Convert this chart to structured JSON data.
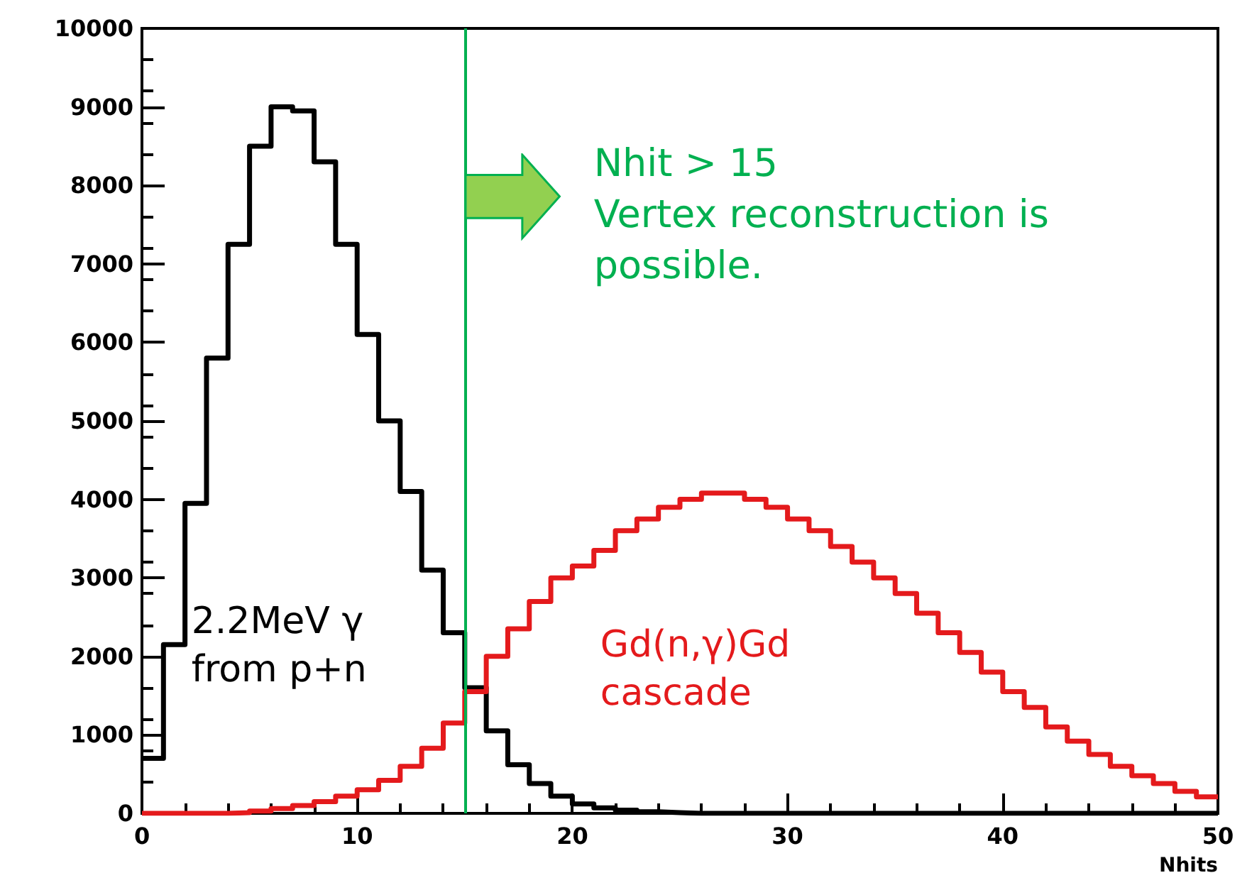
{
  "chart_data": {
    "type": "histogram",
    "xlabel": "Nhits",
    "bins": [
      0,
      1,
      2,
      3,
      4,
      5,
      6,
      7,
      8,
      9,
      10,
      11,
      12,
      13,
      14,
      15,
      16,
      17,
      18,
      19,
      20,
      21,
      22,
      23,
      24,
      25,
      26,
      27,
      28,
      29,
      30,
      31,
      32,
      33,
      34,
      35,
      36,
      37,
      38,
      39,
      40,
      41,
      42,
      43,
      44,
      45,
      46,
      47,
      48,
      49,
      50
    ],
    "series": [
      {
        "name": "2.2MeV γ\nfrom p+n",
        "color": "#000000",
        "values": [
          700,
          2150,
          3950,
          5800,
          7250,
          8500,
          9000,
          8950,
          8300,
          7250,
          6100,
          5000,
          4100,
          3100,
          2300,
          1600,
          1050,
          620,
          380,
          220,
          120,
          70,
          40,
          20,
          10,
          0,
          0,
          0,
          0,
          0,
          0,
          0,
          0,
          0,
          0,
          0,
          0,
          0,
          0,
          0,
          0,
          0,
          0,
          0,
          0,
          0,
          0,
          0,
          0,
          0
        ]
      },
      {
        "name": "Gd(n,γ)Gd\ncascade",
        "color": "#e41a1c",
        "values": [
          0,
          0,
          0,
          0,
          10,
          30,
          60,
          100,
          150,
          220,
          300,
          420,
          600,
          830,
          1150,
          1550,
          2000,
          2350,
          2700,
          3000,
          3150,
          3350,
          3600,
          3750,
          3900,
          4000,
          4080,
          4080,
          4000,
          3900,
          3750,
          3600,
          3400,
          3200,
          3000,
          2800,
          2550,
          2300,
          2050,
          1800,
          1550,
          1350,
          1100,
          920,
          750,
          600,
          480,
          380,
          280,
          210
        ]
      }
    ],
    "xlim": [
      0,
      50
    ],
    "xticks": [
      0,
      10,
      20,
      30,
      40,
      50
    ],
    "ylim": [
      0,
      10000
    ],
    "yticks": [
      0,
      1000,
      2000,
      3000,
      4000,
      5000,
      6000,
      7000,
      8000,
      9000,
      10000
    ],
    "grid": false,
    "ref_lines": [
      {
        "axis": "x",
        "value": 15,
        "label": "Nhit > 15\nVertex reconstruction is\npossible.",
        "color": "#00b050"
      }
    ]
  }
}
